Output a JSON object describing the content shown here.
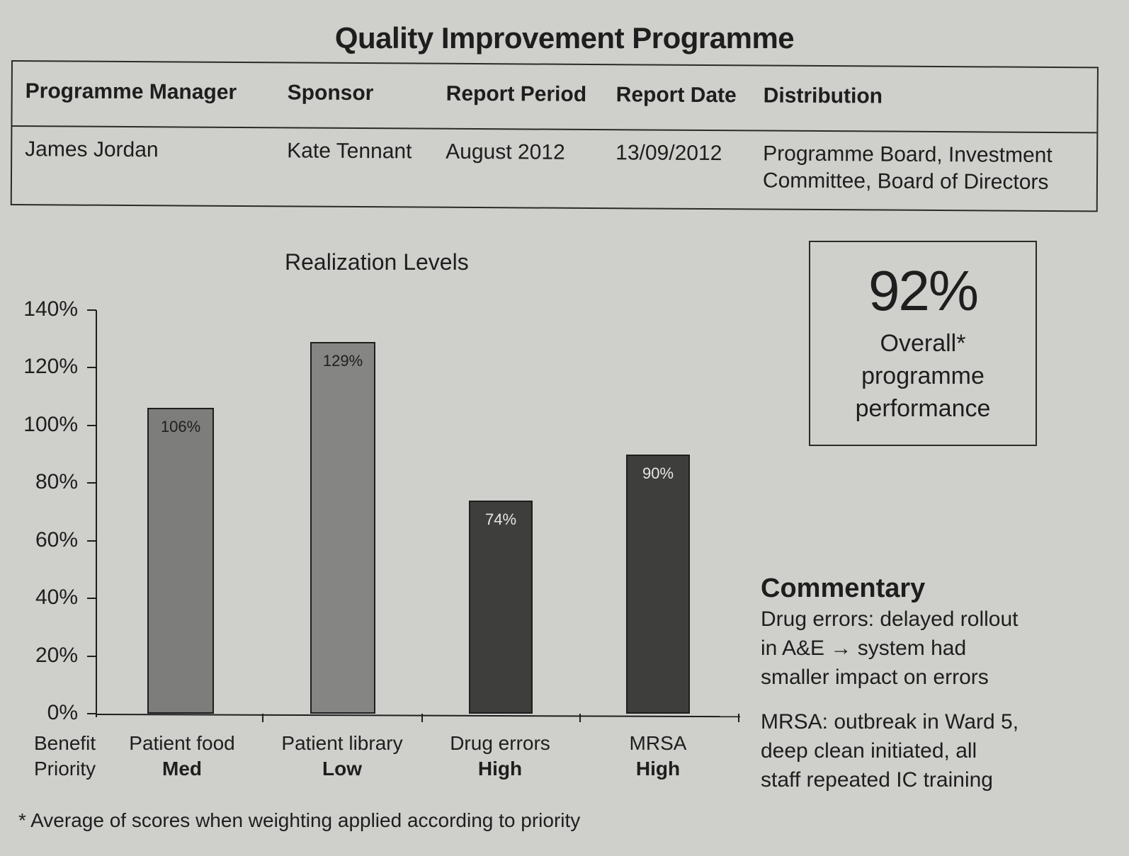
{
  "title": "Quality Improvement Programme",
  "info_table": {
    "headers": [
      "Programme Manager",
      "Sponsor",
      "Report Period",
      "Report Date",
      "Distribution"
    ],
    "values": [
      "James Jordan",
      "Kate Tennant",
      "August 2012",
      "13/09/2012",
      "Programme Board, Investment Committee, Board of Directors"
    ],
    "distribution_lines": [
      "Programme Board, Investment",
      "Committee, Board of Directors"
    ]
  },
  "kpi": {
    "value": "92%",
    "caption_lines": [
      "Overall*",
      "programme",
      "performance"
    ]
  },
  "commentary": {
    "title": "Commentary",
    "items": [
      {
        "lines": [
          "Drug errors: delayed rollout",
          "in A&E → system had",
          "smaller impact on errors"
        ]
      },
      {
        "lines": [
          "MRSA: outbreak in Ward 5,",
          "deep clean initiated, all",
          "staff repeated IC training"
        ]
      }
    ]
  },
  "footnote": "* Average of scores when weighting applied according to priority",
  "axis_labels": {
    "row1": "Benefit",
    "row2": "Priority"
  },
  "colors": {
    "medium_bar": "#7d7d7b",
    "low_bar": "#858583",
    "high_bar": "#3e3e3c",
    "background": "#cfd0cc",
    "ink": "#1e1e1e"
  },
  "chart_data": {
    "type": "bar",
    "title": "Realization Levels",
    "categories": [
      "Patient food",
      "Patient library",
      "Drug errors",
      "MRSA"
    ],
    "priorities": [
      "Med",
      "Low",
      "High",
      "High"
    ],
    "values": [
      106,
      129,
      74,
      90
    ],
    "value_labels": [
      "106%",
      "129%",
      "74%",
      "90%"
    ],
    "xlabel": "Benefit / Priority",
    "ylabel": "",
    "ylim": [
      0,
      140
    ],
    "yticks": [
      "0%",
      "20%",
      "40%",
      "60%",
      "80%",
      "100%",
      "120%",
      "140%"
    ],
    "grid": false,
    "legend": "none"
  }
}
